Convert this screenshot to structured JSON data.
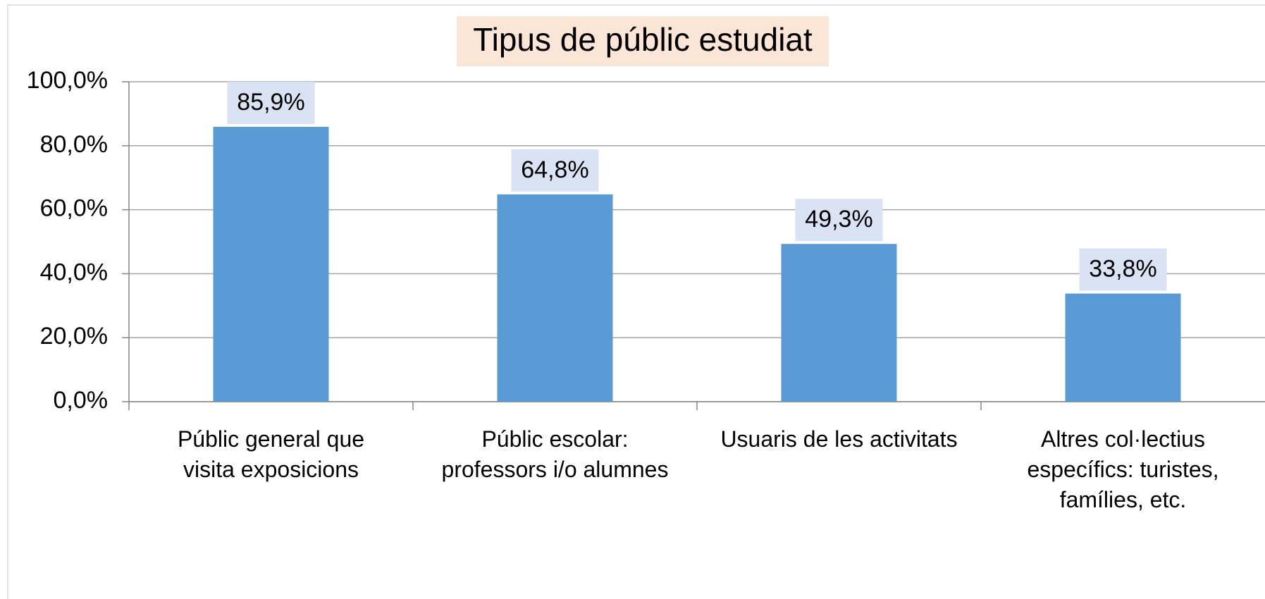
{
  "chart_data": {
    "type": "bar",
    "title": "Tipus de públic estudiat",
    "categories": [
      "Públic general que\nvisita exposicions",
      "Públic escolar:\nprofessors i/o alumnes",
      "Usuaris de les activitats",
      "Altres col·lectius\nespecífics: turistes,\nfamílies, etc."
    ],
    "values": [
      85.9,
      64.8,
      49.3,
      33.8
    ],
    "value_labels": [
      "85,9%",
      "64,8%",
      "49,3%",
      "33,8%"
    ],
    "color": "#5b9bd5",
    "ylim": [
      0,
      100
    ],
    "yticks": [
      {
        "value": 0,
        "label": "0,0%"
      },
      {
        "value": 20,
        "label": "20,0%"
      },
      {
        "value": 40,
        "label": "40,0%"
      },
      {
        "value": 60,
        "label": "60,0%"
      },
      {
        "value": 80,
        "label": "80,0%"
      },
      {
        "value": 100,
        "label": "100,0%"
      }
    ],
    "grid": true
  }
}
